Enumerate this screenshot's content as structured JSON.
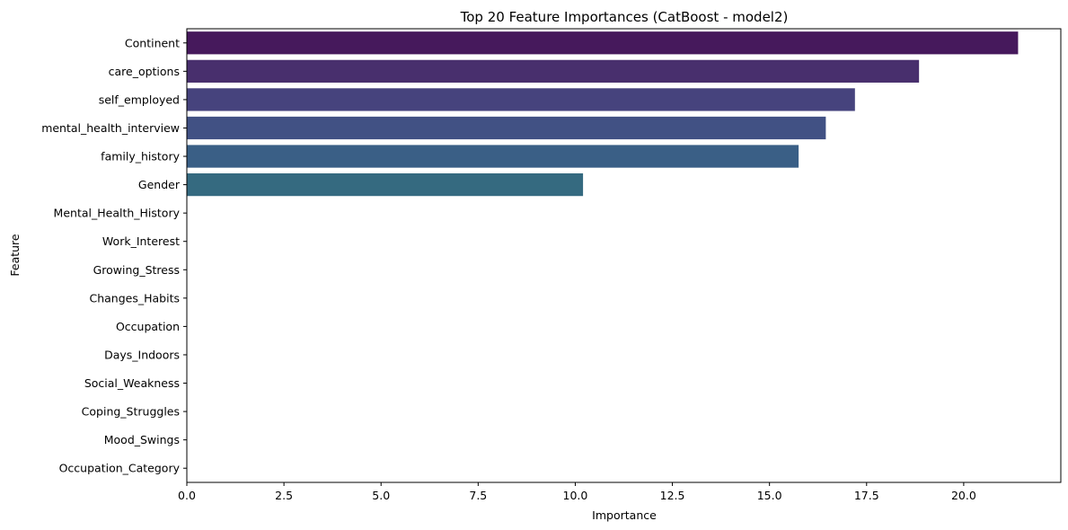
{
  "chart_data": {
    "type": "bar",
    "orientation": "horizontal",
    "title": "Top 20 Feature Importances (CatBoost - model2)",
    "xlabel": "Importance",
    "ylabel": "Feature",
    "xlim": [
      0,
      22.5
    ],
    "xticks": [
      0.0,
      2.5,
      5.0,
      7.5,
      10.0,
      12.5,
      15.0,
      17.5,
      20.0
    ],
    "xtick_labels": [
      "0.0",
      "2.5",
      "5.0",
      "7.5",
      "10.0",
      "12.5",
      "15.0",
      "17.5",
      "20.0"
    ],
    "grid": false,
    "legend": "none",
    "categories": [
      "Continent",
      "care_options",
      "self_employed",
      "mental_health_interview",
      "family_history",
      "Gender",
      "Mental_Health_History",
      "Work_Interest",
      "Growing_Stress",
      "Changes_Habits",
      "Occupation",
      "Days_Indoors",
      "Social_Weakness",
      "Coping_Struggles",
      "Mood_Swings",
      "Occupation_Category"
    ],
    "values": [
      21.4,
      18.85,
      17.2,
      16.45,
      15.75,
      10.2,
      0,
      0,
      0,
      0,
      0,
      0,
      0,
      0,
      0,
      0
    ],
    "colors": [
      "#46195c",
      "#482f6d",
      "#46437d",
      "#415184",
      "#3a5f86",
      "#356a80",
      "#306f86",
      "#2b7b8c",
      "#24878e",
      "#1f948c",
      "#20a386",
      "#2eb07d",
      "#4abf6f",
      "#6ccd5a",
      "#93d741",
      "#bddf26"
    ]
  }
}
